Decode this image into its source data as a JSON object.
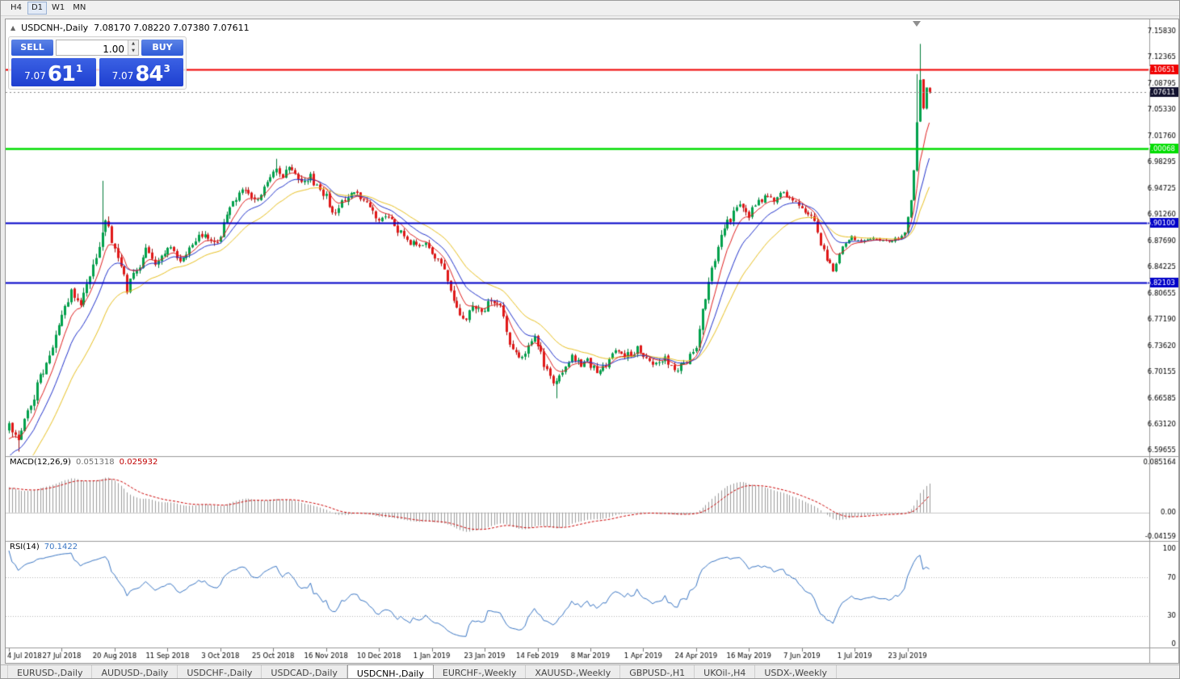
{
  "toolbar": {
    "timeframes": [
      {
        "label": "H4",
        "active": false
      },
      {
        "label": "D1",
        "active": true
      },
      {
        "label": "W1",
        "active": false
      },
      {
        "label": "MN",
        "active": false
      }
    ]
  },
  "header": {
    "collapse_icon": "▲",
    "symbol": "USDCNH-,Daily",
    "ohlc": "7.08170 7.08220 7.07380 7.07611"
  },
  "trade_panel": {
    "sell_label": "SELL",
    "buy_label": "BUY",
    "volume": "1.00",
    "bid": {
      "small": "7.07",
      "big": "61",
      "sup": "1"
    },
    "ask": {
      "small": "7.07",
      "big": "84",
      "sup": "3"
    }
  },
  "ui_colors": {
    "button_blue": "#2f5bd8",
    "button_blue_light": "#5b83e6",
    "price_box_blue": "#1e3fd0",
    "price_box_blue_light": "#3b61e4",
    "current_price_tag": "#11112e"
  },
  "chart_data": {
    "type": "candlestick",
    "symbol": "USDCNH-",
    "timeframe": "Daily",
    "current_price": 7.07611,
    "y_axis_labels": [
      "7.15830",
      "7.12365",
      "7.08795",
      "7.05330",
      "7.01760",
      "6.98295",
      "6.94725",
      "6.91260",
      "6.87690",
      "6.84225",
      "6.80655",
      "6.77190",
      "6.73620",
      "6.70155",
      "6.66585",
      "6.63120",
      "6.59655"
    ],
    "y_range": [
      6.5912,
      7.1712
    ],
    "x_axis_labels": [
      "4 Jul 2018",
      "27 Jul 2018",
      "20 Aug 2018",
      "11 Sep 2018",
      "3 Oct 2018",
      "25 Oct 2018",
      "16 Nov 2018",
      "10 Dec 2018",
      "1 Jan 2019",
      "23 Jan 2019",
      "14 Feb 2019",
      "8 Mar 2019",
      "1 Apr 2019",
      "24 Apr 2019",
      "16 May 2019",
      "7 Jun 2019",
      "1 Jul 2019",
      "23 Jul 2019"
    ],
    "bars_per_label": 17,
    "visible_bars": 297,
    "warmup_bars": 40,
    "bar_spacing": 3.85,
    "up_color": "#00a14b",
    "down_color": "#e01818",
    "up_wick": "#007a37",
    "down_wick": "#9c0f0f",
    "hlines": [
      {
        "price": 7.10651,
        "label": "7.10651",
        "color": "#f00000",
        "width": 2
      },
      {
        "price": 7.00068,
        "label": "7.00068",
        "color": "#00dd00",
        "width": 2.5
      },
      {
        "price": 6.901,
        "label": "6.90100",
        "color": "#0000c8",
        "width": 2
      },
      {
        "price": 6.82103,
        "label": "6.82103",
        "color": "#0000c8",
        "width": 2
      }
    ],
    "price_anchors": [
      [
        -40,
        6.38
      ],
      [
        -28,
        6.44
      ],
      [
        -18,
        6.5
      ],
      [
        -10,
        6.565
      ],
      [
        -5,
        6.603
      ],
      [
        0,
        6.635
      ],
      [
        3,
        6.607
      ],
      [
        6,
        6.645
      ],
      [
        10,
        6.693
      ],
      [
        14,
        6.733
      ],
      [
        17,
        6.775
      ],
      [
        20,
        6.81
      ],
      [
        23,
        6.793
      ],
      [
        26,
        6.83
      ],
      [
        29,
        6.868
      ],
      [
        31,
        6.905
      ],
      [
        33,
        6.878
      ],
      [
        36,
        6.842
      ],
      [
        38,
        6.812
      ],
      [
        41,
        6.835
      ],
      [
        44,
        6.862
      ],
      [
        47,
        6.845
      ],
      [
        51,
        6.868
      ],
      [
        55,
        6.853
      ],
      [
        59,
        6.872
      ],
      [
        63,
        6.888
      ],
      [
        66,
        6.872
      ],
      [
        68,
        6.886
      ],
      [
        72,
        6.93
      ],
      [
        76,
        6.945
      ],
      [
        80,
        6.93
      ],
      [
        83,
        6.958
      ],
      [
        86,
        6.975
      ],
      [
        88,
        6.963
      ],
      [
        91,
        6.976
      ],
      [
        94,
        6.955
      ],
      [
        97,
        6.962
      ],
      [
        100,
        6.942
      ],
      [
        102,
        6.935
      ],
      [
        104,
        6.912
      ],
      [
        107,
        6.93
      ],
      [
        110,
        6.942
      ],
      [
        113,
        6.934
      ],
      [
        116,
        6.925
      ],
      [
        119,
        6.902
      ],
      [
        122,
        6.908
      ],
      [
        125,
        6.891
      ],
      [
        128,
        6.877
      ],
      [
        131,
        6.869
      ],
      [
        134,
        6.876
      ],
      [
        137,
        6.856
      ],
      [
        140,
        6.835
      ],
      [
        143,
        6.792
      ],
      [
        146,
        6.771
      ],
      [
        149,
        6.786
      ],
      [
        152,
        6.781
      ],
      [
        155,
        6.8
      ],
      [
        158,
        6.792
      ],
      [
        161,
        6.742
      ],
      [
        164,
        6.72
      ],
      [
        167,
        6.732
      ],
      [
        169,
        6.746
      ],
      [
        172,
        6.712
      ],
      [
        175,
        6.687
      ],
      [
        178,
        6.7
      ],
      [
        181,
        6.72
      ],
      [
        184,
        6.71
      ],
      [
        186,
        6.716
      ],
      [
        189,
        6.7
      ],
      [
        192,
        6.711
      ],
      [
        195,
        6.73
      ],
      [
        198,
        6.721
      ],
      [
        202,
        6.731
      ],
      [
        205,
        6.72
      ],
      [
        208,
        6.711
      ],
      [
        211,
        6.721
      ],
      [
        214,
        6.7
      ],
      [
        217,
        6.712
      ],
      [
        219,
        6.722
      ],
      [
        221,
        6.736
      ],
      [
        223,
        6.78
      ],
      [
        225,
        6.821
      ],
      [
        227,
        6.852
      ],
      [
        229,
        6.882
      ],
      [
        231,
        6.901
      ],
      [
        233,
        6.912
      ],
      [
        235,
        6.921
      ],
      [
        238,
        6.911
      ],
      [
        241,
        6.931
      ],
      [
        244,
        6.936
      ],
      [
        247,
        6.931
      ],
      [
        249,
        6.946
      ],
      [
        251,
        6.931
      ],
      [
        254,
        6.926
      ],
      [
        257,
        6.912
      ],
      [
        259,
        6.9
      ],
      [
        262,
        6.862
      ],
      [
        265,
        6.836
      ],
      [
        268,
        6.87
      ],
      [
        271,
        6.881
      ],
      [
        274,
        6.876
      ],
      [
        277,
        6.881
      ],
      [
        280,
        6.876
      ],
      [
        283,
        6.876
      ],
      [
        286,
        6.881
      ],
      [
        288,
        6.887
      ],
      [
        290,
        6.932
      ],
      [
        291,
        6.972
      ],
      [
        292,
        7.035
      ],
      [
        293,
        7.092
      ],
      [
        294,
        7.055
      ],
      [
        295,
        7.078
      ],
      [
        296,
        7.0761
      ]
    ],
    "wick_events": [
      {
        "bar": 3,
        "low": 6.594
      },
      {
        "bar": 30,
        "high": 6.957
      },
      {
        "bar": 86,
        "high": 6.9865
      },
      {
        "bar": 176,
        "low": 6.6655
      },
      {
        "bar": 292,
        "high": 7.1
      },
      {
        "bar": 293,
        "high": 7.1405
      }
    ],
    "last_bar": {
      "open": 7.0817,
      "high": 7.0822,
      "low": 7.0738,
      "close": 7.07611
    },
    "moving_averages": [
      {
        "period": 7,
        "type": "ema",
        "color": "#e02020"
      },
      {
        "period": 14,
        "type": "ema",
        "color": "#2233cc"
      },
      {
        "period": 26,
        "type": "ema",
        "color": "#e8c020"
      }
    ],
    "macd": {
      "name": "MACD(12,26,9)",
      "value_main": "0.051318",
      "value_signal": "0.025932",
      "fast": 12,
      "slow": 26,
      "signal": 9,
      "range": [
        -0.04159,
        0.085164
      ],
      "axis_labels": [
        "0.085164",
        "0.00",
        "-0.04159"
      ],
      "histogram_color": "#9b9b9b",
      "signal_color": "#cc0000"
    },
    "rsi": {
      "name": "RSI(14)",
      "value": "70.1422",
      "period": 14,
      "levels": [
        70,
        30
      ],
      "axis_labels": [
        "100",
        "70",
        "30",
        "0"
      ],
      "line_color": "#3a76c4",
      "range": [
        0,
        100
      ]
    }
  },
  "tabs": [
    {
      "label": "EURUSD-,Daily",
      "active": false
    },
    {
      "label": "AUDUSD-,Daily",
      "active": false
    },
    {
      "label": "USDCHF-,Daily",
      "active": false
    },
    {
      "label": "USDCAD-,Daily",
      "active": false
    },
    {
      "label": "USDCNH-,Daily",
      "active": true
    },
    {
      "label": "EURCHF-,Weekly",
      "active": false
    },
    {
      "label": "XAUUSD-,Weekly",
      "active": false
    },
    {
      "label": "GBPUSD-,H1",
      "active": false
    },
    {
      "label": "UKOil-,H4",
      "active": false
    },
    {
      "label": "USDX-,Weekly",
      "active": false
    }
  ]
}
